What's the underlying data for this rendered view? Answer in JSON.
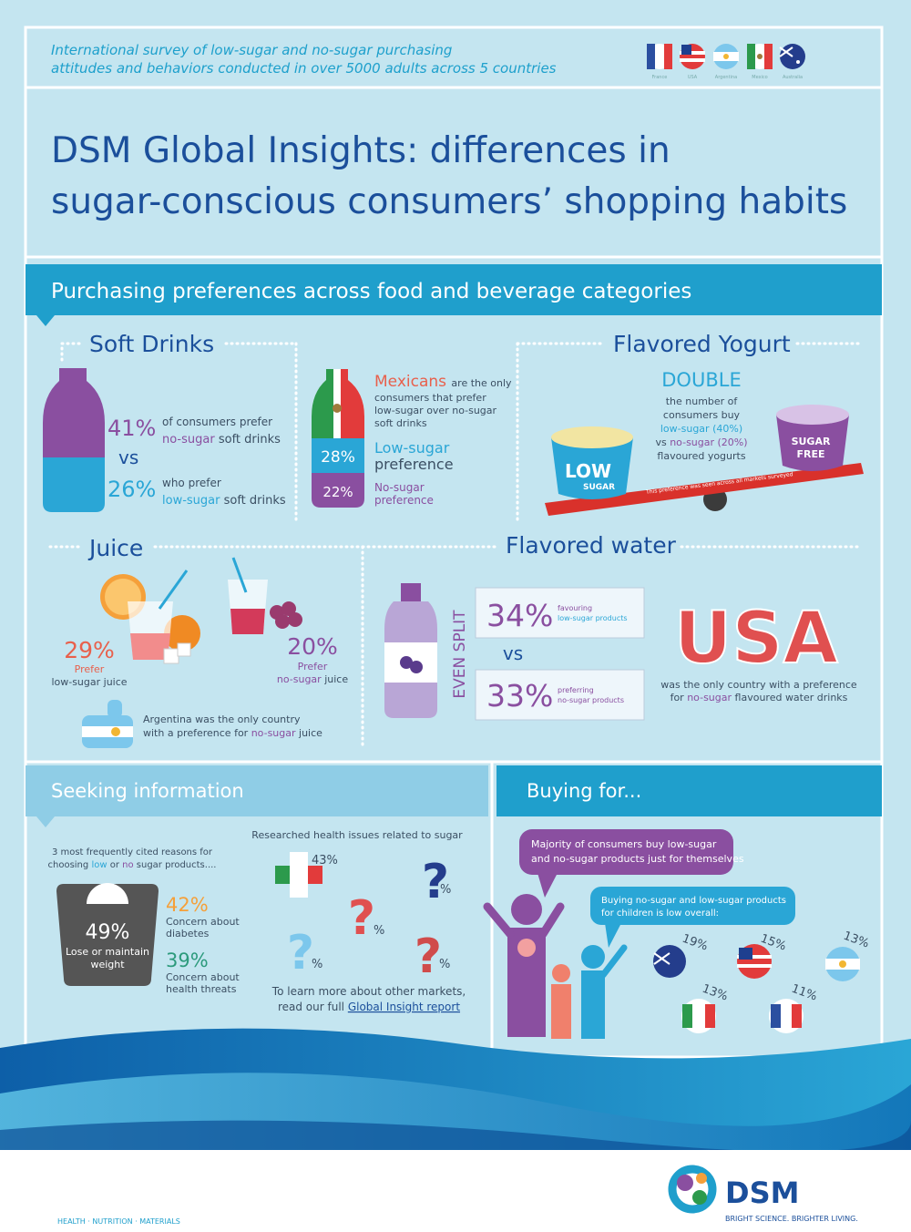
{
  "header": {
    "intro": [
      "International survey of low-sugar and no-sugar purchasing",
      "attitudes and behaviors conducted in over 5000 adults across 5 countries"
    ],
    "flags": [
      "France",
      "USA",
      "Argentina",
      "Mexico",
      "Australia"
    ],
    "title": [
      "DSM Global Insights: differences in",
      "sugar-conscious consumers’ shopping habits"
    ]
  },
  "preferences": {
    "heading": "Purchasing preferences across food and beverage categories",
    "soft_drinks": {
      "heading": "Soft Drinks",
      "no_sugar_pct": "41%",
      "no_sugar_text": [
        "of consumers prefer",
        "no-sugar",
        "soft drinks"
      ],
      "vs": "vs",
      "low_sugar_pct": "26%",
      "low_sugar_text": [
        "who prefer",
        "low-sugar",
        "soft drinks"
      ],
      "mexico": {
        "highlight": "Mexicans",
        "text": [
          "are the only",
          "consumers that prefer",
          "low-sugar over no-sugar",
          "soft drinks"
        ],
        "low_pct": "28%",
        "low_label": [
          "Low-sugar",
          "preference"
        ],
        "no_pct": "22%",
        "no_label": [
          "No-sugar",
          "preference"
        ]
      }
    },
    "yogurt": {
      "heading": "Flavored Yogurt",
      "double": "DOUBLE",
      "text": [
        "the number of",
        "consumers buy",
        "low-sugar (40%)",
        "vs",
        "no-sugar (20%)",
        "flavoured yogurts"
      ],
      "low_cup": [
        "LOW",
        "SUGAR"
      ],
      "free_cup": [
        "SUGAR",
        "FREE"
      ],
      "seesaw_note": "This preference was seen across all markets surveyed"
    },
    "juice": {
      "heading": "Juice",
      "low_pct": "29%",
      "low_text": [
        "Prefer",
        "low-sugar juice"
      ],
      "no_pct": "20%",
      "no_text": [
        "Prefer",
        "no-sugar",
        "juice"
      ],
      "note": [
        "Argentina was the only country",
        "with a preference for",
        "no-sugar",
        "juice"
      ]
    },
    "water": {
      "heading": "Flavored water",
      "split": "EVEN SPLIT",
      "low_pct": "34%",
      "low_text": [
        "favouring",
        "low-sugar products"
      ],
      "vs": "vs",
      "no_pct": "33%",
      "no_text": [
        "preferring",
        "no-sugar products"
      ],
      "country": "USA",
      "note": [
        "was the only country with a preference",
        "for",
        "no-sugar",
        "flavoured water drinks"
      ]
    }
  },
  "seeking": {
    "heading": "Seeking information",
    "reasons_intro": [
      "3 most frequently cited reasons for",
      "choosing",
      "low",
      "or",
      "no",
      "sugar products...."
    ],
    "reasons": [
      {
        "pct": "49%",
        "label": [
          "Lose or maintain",
          "weight"
        ]
      },
      {
        "pct": "42%",
        "label": [
          "Concern about",
          "diabetes"
        ]
      },
      {
        "pct": "39%",
        "label": [
          "Concern about",
          "health threats"
        ]
      }
    ],
    "research_heading": "Researched health issues related to sugar",
    "research": [
      "43%",
      "%",
      "%",
      "%",
      "%"
    ],
    "more": [
      "To learn more about other markets,",
      "read our full",
      "Global Insight report"
    ]
  },
  "buying": {
    "heading": "Buying for...",
    "self": [
      "Majority of consumers buy low-sugar",
      "and no-sugar products just for themselves"
    ],
    "children": [
      "Buying no-sugar and low-sugar products",
      "for children is low overall:"
    ],
    "children_pcts": [
      "19%",
      "15%",
      "13%",
      "13%",
      "11%"
    ]
  },
  "footer": {
    "tagline": "HEALTH · NUTRITION · MATERIALS",
    "brand": "DSM",
    "slogan": "BRIGHT SCIENCE. BRIGHTER LIVING."
  }
}
